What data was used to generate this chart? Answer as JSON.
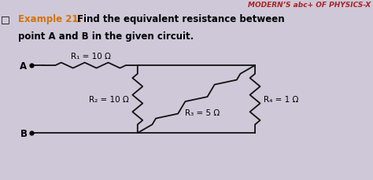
{
  "bg_color": "#cfc8d8",
  "title_line1": "MODERN’S abc+ OF PHYSICS-X",
  "title_color": "#aa2222",
  "example_label": "Example 21.",
  "example_label_color": "#d4730a",
  "example_text1": "  Find the equivalent resistance between",
  "example_text2": "point A and B in the given circuit.",
  "R1_label": "R₁ = 10 Ω",
  "R2_label": "R₂ = 10 Ω",
  "R3_label": "R₃ = 5 Ω",
  "R4_label": "R₄ = 1 Ω",
  "node_A_label": "A",
  "node_B_label": "B",
  "wire_color": "#111111",
  "resistor_color": "#111111",
  "xA": 0.8,
  "yA": 5.4,
  "xTL": 3.5,
  "yTL": 5.4,
  "xTR": 6.5,
  "yTR": 5.4,
  "xBL": 3.5,
  "yBL": 2.2,
  "xBR": 6.5,
  "yBR": 2.2,
  "xB": 0.8,
  "yB": 2.2,
  "xlim": [
    0,
    9.5
  ],
  "ylim": [
    0,
    8.5
  ]
}
